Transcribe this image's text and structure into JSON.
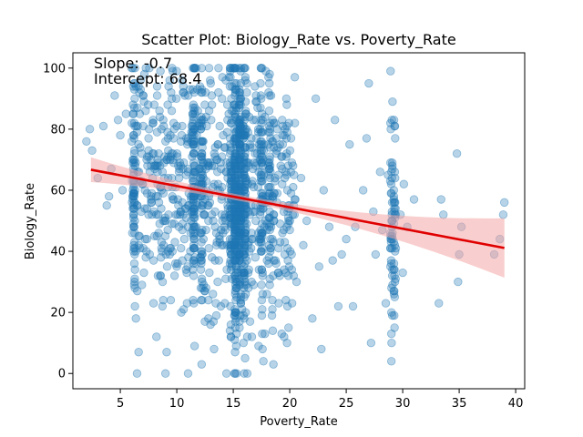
{
  "chart_data": {
    "type": "scatter",
    "title": "Scatter Plot: Biology_Rate vs. Poverty_Rate",
    "xlabel": "Poverty_Rate",
    "ylabel": "Biology_Rate",
    "xlim": [
      0.8,
      40.8
    ],
    "ylim": [
      -5,
      105
    ],
    "xticks": [
      5,
      10,
      15,
      20,
      25,
      30,
      35,
      40
    ],
    "yticks": [
      0,
      20,
      40,
      60,
      80,
      100
    ],
    "grid": false,
    "annotations": [
      "Slope: -0.7",
      "Intercept: 68.4"
    ],
    "regression": {
      "slope": -0.7,
      "intercept": 68.4,
      "x_range": [
        2.4,
        39
      ]
    },
    "colors": {
      "points": "#1f77b4",
      "line": "#e00000",
      "band": "#f4a6a6"
    },
    "columns_x": [
      6.2,
      11.5,
      12.2,
      14.8,
      15.2,
      15.6,
      16.0,
      17.5,
      18.2,
      29.0,
      29.3
    ],
    "points": [
      [
        2.0,
        76
      ],
      [
        2.3,
        80
      ],
      [
        3.5,
        81
      ],
      [
        4.2,
        67
      ],
      [
        4.5,
        91
      ],
      [
        4.8,
        83
      ],
      [
        5.5,
        85
      ],
      [
        6.0,
        100
      ],
      [
        3.8,
        55
      ],
      [
        7.0,
        62
      ],
      [
        7.2,
        44
      ],
      [
        7.5,
        73
      ],
      [
        7.8,
        52
      ],
      [
        8.0,
        88
      ],
      [
        8.3,
        66
      ],
      [
        8.6,
        38
      ],
      [
        8.8,
        24
      ],
      [
        9.0,
        0
      ],
      [
        9.2,
        47
      ],
      [
        9.4,
        70
      ],
      [
        9.6,
        58
      ],
      [
        9.8,
        32
      ],
      [
        10.0,
        81
      ],
      [
        10.2,
        64
      ],
      [
        10.4,
        20
      ],
      [
        10.6,
        92
      ],
      [
        10.8,
        54
      ],
      [
        11.0,
        0
      ],
      [
        11.2,
        40
      ],
      [
        11.5,
        72
      ],
      [
        12.2,
        3
      ],
      [
        12.8,
        18
      ],
      [
        13.0,
        95
      ],
      [
        13.3,
        8
      ],
      [
        13.6,
        66
      ],
      [
        13.9,
        22
      ],
      [
        14.2,
        48
      ],
      [
        14.4,
        0
      ],
      [
        14.6,
        85
      ],
      [
        14.8,
        12
      ],
      [
        16.2,
        37
      ],
      [
        16.5,
        75
      ],
      [
        16.8,
        29
      ],
      [
        17.0,
        89
      ],
      [
        17.3,
        44
      ],
      [
        17.8,
        13
      ],
      [
        18.5,
        57
      ],
      [
        18.7,
        82
      ],
      [
        19.0,
        33
      ],
      [
        19.2,
        68
      ],
      [
        19.5,
        12
      ],
      [
        19.7,
        90
      ],
      [
        20.0,
        47
      ],
      [
        20.3,
        61
      ],
      [
        20.6,
        30
      ],
      [
        21.0,
        64
      ],
      [
        21.5,
        50
      ],
      [
        22.0,
        18
      ],
      [
        22.3,
        90
      ],
      [
        22.6,
        35
      ],
      [
        22.8,
        8
      ],
      [
        23.0,
        60
      ],
      [
        23.5,
        48
      ],
      [
        24.0,
        83
      ],
      [
        24.3,
        22
      ],
      [
        24.6,
        39
      ],
      [
        25.0,
        44
      ],
      [
        25.3,
        75
      ],
      [
        25.6,
        22
      ],
      [
        26.5,
        60
      ],
      [
        27.0,
        95
      ],
      [
        27.2,
        10
      ],
      [
        27.4,
        53
      ],
      [
        27.6,
        39
      ],
      [
        28.0,
        66
      ],
      [
        28.2,
        47
      ],
      [
        28.5,
        23
      ],
      [
        29.8,
        52
      ],
      [
        30.1,
        62
      ],
      [
        30.4,
        48
      ],
      [
        33.2,
        23
      ],
      [
        33.4,
        57
      ],
      [
        33.6,
        52
      ],
      [
        34.8,
        72
      ],
      [
        34.9,
        30
      ],
      [
        35.0,
        39
      ],
      [
        35.2,
        48
      ],
      [
        38.1,
        39
      ],
      [
        38.6,
        44
      ],
      [
        38.9,
        52
      ],
      [
        39.0,
        56
      ],
      [
        2.5,
        73
      ],
      [
        3.0,
        64
      ],
      [
        4.0,
        58
      ],
      [
        5.0,
        78
      ],
      [
        5.2,
        60
      ],
      [
        6.8,
        96
      ],
      [
        7.6,
        39
      ],
      [
        8.2,
        12
      ],
      [
        9.1,
        7
      ],
      [
        10.5,
        37
      ],
      [
        12.6,
        28
      ],
      [
        13.4,
        74
      ],
      [
        14.0,
        58
      ],
      [
        16.6,
        55
      ],
      [
        17.6,
        26
      ],
      [
        18.8,
        72
      ],
      [
        19.8,
        41
      ],
      [
        21.2,
        42
      ],
      [
        23.8,
        37
      ],
      [
        25.8,
        48
      ],
      [
        26.8,
        77
      ],
      [
        28.7,
        65
      ],
      [
        30.0,
        33
      ],
      [
        31.0,
        57
      ]
    ]
  }
}
